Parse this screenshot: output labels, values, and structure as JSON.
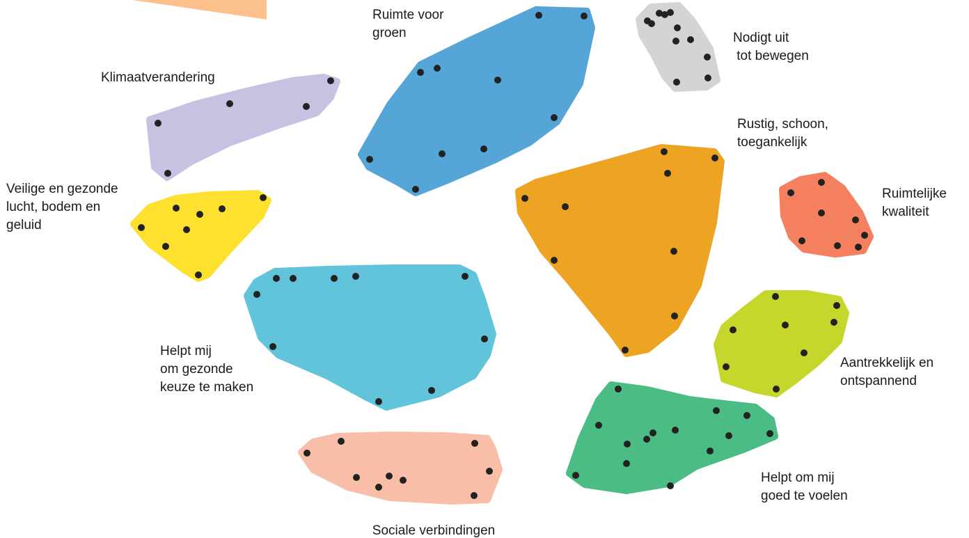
{
  "clusters": [
    {
      "id": "ruimte-voor-groen",
      "label_lines": [
        "Ruimte voor",
        "groen"
      ],
      "color": "#56a5d8"
    },
    {
      "id": "nodigt-uit-tot-bewegen",
      "label_lines": [
        "Nodigt uit",
        " tot bewegen"
      ],
      "color": "#d4d4d4"
    },
    {
      "id": "klimaatverandering",
      "label_lines": [
        "Klimaatverandering"
      ],
      "color": "#c8c1e1"
    },
    {
      "id": "rustig-schoon-toegankelijk",
      "label_lines": [
        "Rustig, schoon,",
        "toegankelijk"
      ],
      "color": "#eda422"
    },
    {
      "id": "veilige-en-gezonde-lucht",
      "label_lines": [
        "Veilige en gezonde",
        "lucht, bodem en",
        "geluid"
      ],
      "color": "#fee12e"
    },
    {
      "id": "ruimtelijke-kwaliteit",
      "label_lines": [
        "Ruimtelijke",
        "kwaliteit"
      ],
      "color": "#f4805f"
    },
    {
      "id": "helpt-mij-gezonde-keuze",
      "label_lines": [
        "Helpt mij",
        "om gezonde",
        "keuze te maken"
      ],
      "color": "#61c4da"
    },
    {
      "id": "aantrekkelijk-en-ontspannend",
      "label_lines": [
        "Aantrekkelijk en",
        "ontspannend"
      ],
      "color": "#c6d72b"
    },
    {
      "id": "sociale-verbindingen",
      "label_lines": [
        "Sociale verbindingen"
      ],
      "color": "#f8bea7"
    },
    {
      "id": "helpt-om-mij-goed-te-voelen",
      "label_lines": [
        "Helpt om mij",
        "goed te voelen"
      ],
      "color": "#4bbc84"
    }
  ],
  "corner_shape_color": "#fcc08d",
  "dot_color": "#222222"
}
